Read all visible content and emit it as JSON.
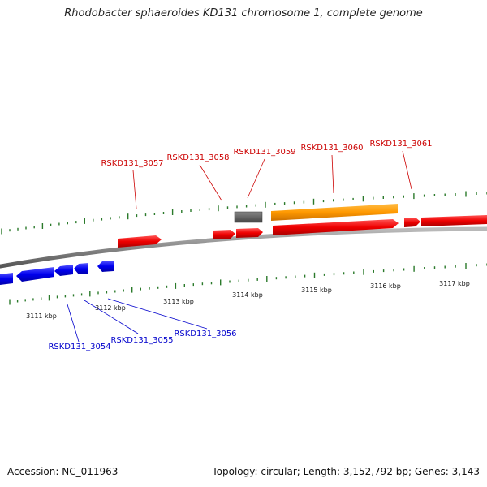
{
  "title": "Rhodobacter sphaeroides KD131 chromosome 1, complete genome",
  "footer": {
    "accession": "Accession: NC_011963",
    "topology": "Topology: circular; Length: 3,152,792 bp; Genes: 3,143"
  },
  "colors": {
    "forward_gene": "#ff0000",
    "reverse_gene": "#0000ff",
    "highlight_gene": "#ff9900",
    "other_feature": "#666666",
    "backbone": "#888888",
    "tick": "#2b7a2b",
    "forward_label": "#cc0000",
    "reverse_label": "#0000cc"
  },
  "kbp_labels": [
    "3111 kbp",
    "3112 kbp",
    "3113 kbp",
    "3114 kbp",
    "3115 kbp",
    "3116 kbp",
    "3117 kbp"
  ],
  "forward_labels": [
    "RSKD131_3057",
    "RSKD131_3058",
    "RSKD131_3059",
    "RSKD131_3060",
    "RSKD131_3061"
  ],
  "reverse_labels": [
    "RSKD131_3054",
    "RSKD131_3055",
    "RSKD131_3056"
  ]
}
